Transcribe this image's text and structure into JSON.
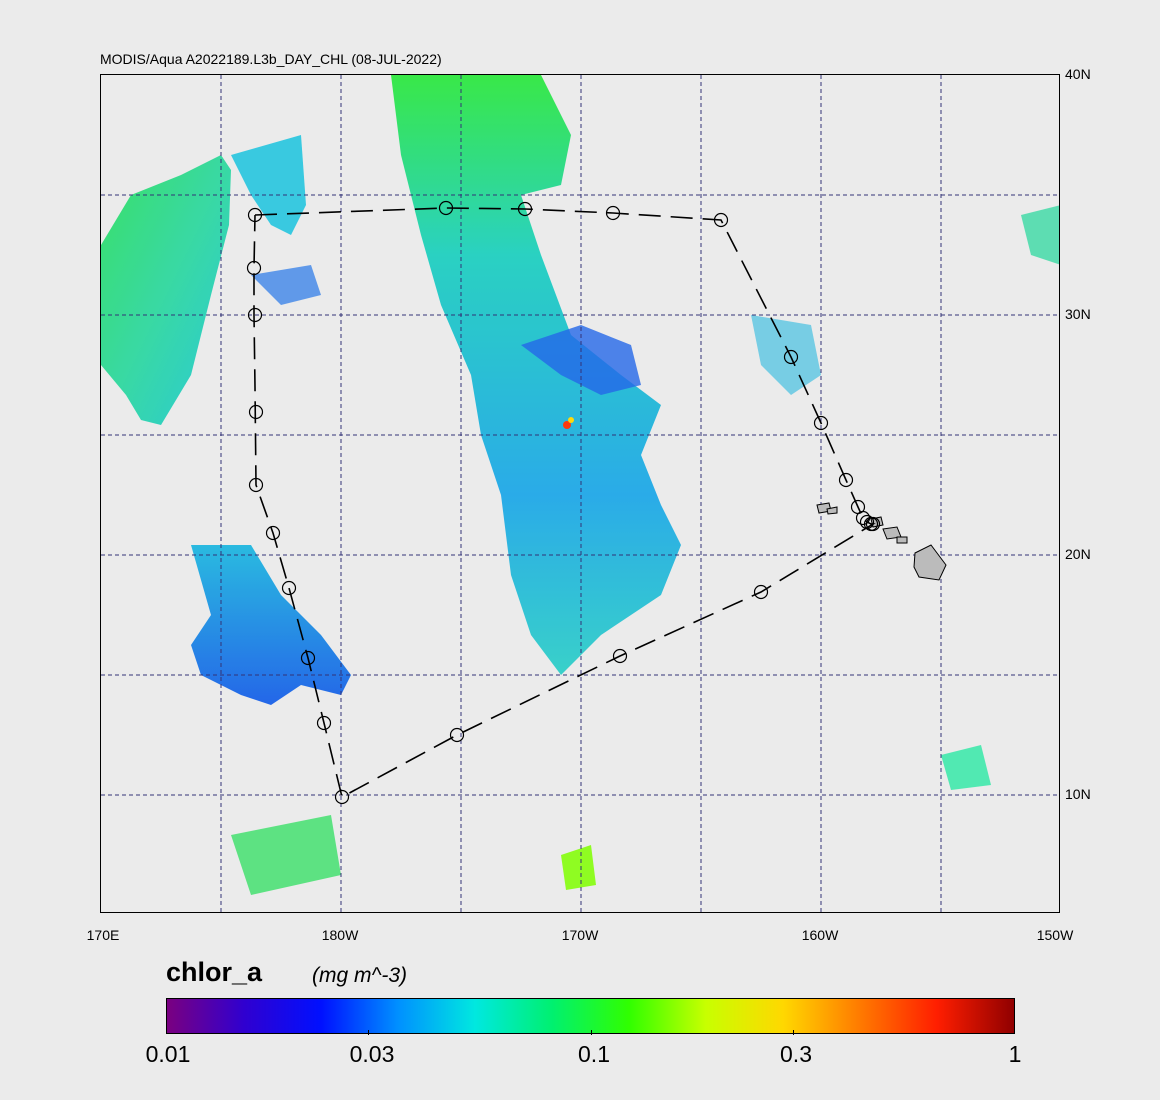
{
  "title": "MODIS/Aqua A2022189.L3b_DAY_CHL (08-JUL-2022)",
  "lat_labels": [
    "40N",
    "30N",
    "20N",
    "10N"
  ],
  "lon_labels": [
    "170E",
    "180W",
    "170W",
    "160W",
    "150W"
  ],
  "colorbar": {
    "variable": "chlor_a",
    "units": "(mg m^-3)",
    "ticks": [
      "0.01",
      "0.03",
      "0.1",
      "0.3",
      "1"
    ],
    "scale": "log",
    "colors": [
      "#7a0080",
      "#3000d0",
      "#0010ff",
      "#0090ff",
      "#00e8e0",
      "#00f070",
      "#30ff00",
      "#c8ff00",
      "#ffd800",
      "#ff7a00",
      "#ff1e00",
      "#900000"
    ]
  },
  "map": {
    "background": "#ebebeb",
    "grid_color": "#333377",
    "land_color": "#bbbbbb",
    "route_color": "#000000"
  }
}
